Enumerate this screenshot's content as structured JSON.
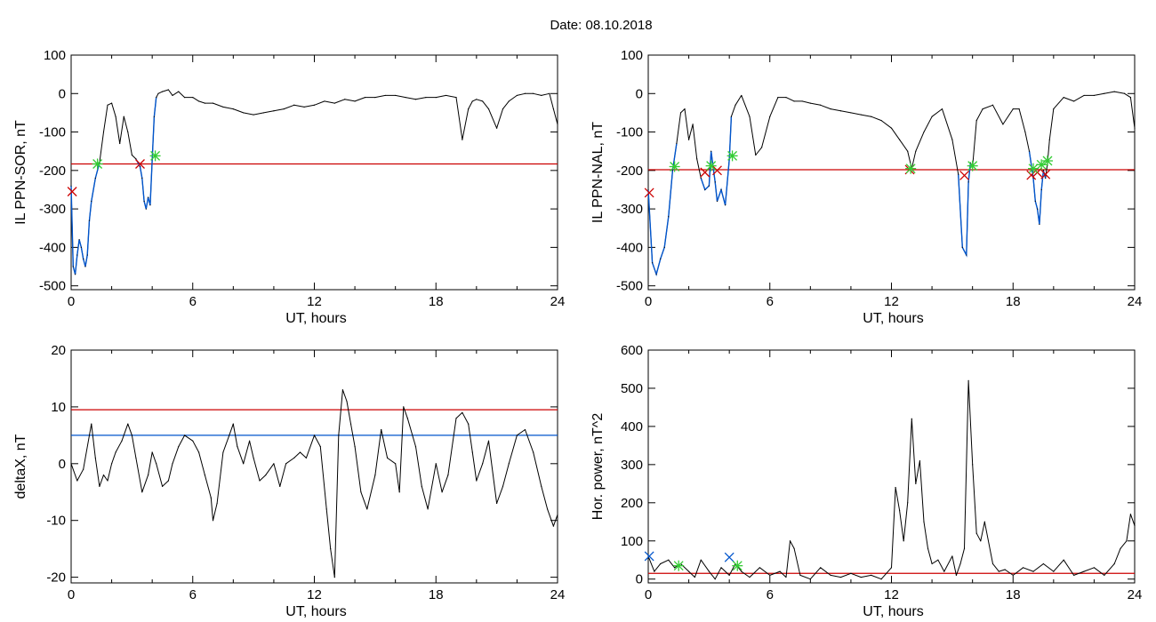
{
  "figure_title": "Date:  08.10.2018",
  "colors": {
    "trace": "#000000",
    "threshold": "#cc0000",
    "highlight": "#0055cc",
    "mark_red": "#cc0000",
    "mark_green": "#33cc33",
    "mark_blue": "#0055cc"
  },
  "chart_data": [
    {
      "type": "line",
      "ylabel": "IL PPN-SOR, nT",
      "xlabel": "UT, hours",
      "xlim": [
        0,
        24
      ],
      "ylim": [
        -510,
        100
      ],
      "xticks": [
        "0",
        "6",
        "12",
        "18",
        "24"
      ],
      "yticks": [
        "100",
        "0",
        "-100",
        "-200",
        "-300",
        "-400",
        "-500"
      ],
      "threshold_red": -183,
      "series": [
        {
          "x": [
            0,
            0.1,
            0.2,
            0.3,
            0.4,
            0.5,
            0.6,
            0.7,
            0.8,
            0.9,
            1.0,
            1.2,
            1.4,
            1.6,
            1.8,
            2.0,
            2.2,
            2.4,
            2.6,
            2.8,
            3.0,
            3.2,
            3.4,
            3.5,
            3.6,
            3.7,
            3.8,
            3.9,
            4.0,
            4.1,
            4.2,
            4.3,
            4.5,
            4.8,
            5.0,
            5.3,
            5.6,
            6.0,
            6.3,
            6.6,
            7.0,
            7.5,
            8.0,
            8.5,
            9.0,
            9.5,
            10.0,
            10.5,
            11.0,
            11.5,
            12.0,
            12.5,
            13.0,
            13.5,
            14.0,
            14.5,
            15.0,
            15.5,
            16.0,
            16.5,
            17.0,
            17.5,
            18.0,
            18.5,
            19.0,
            19.3,
            19.6,
            19.8,
            20.0,
            20.3,
            20.6,
            21.0,
            21.3,
            21.6,
            22.0,
            22.4,
            22.8,
            23.2,
            23.6,
            23.8,
            24.0
          ],
          "y": [
            -240,
            -450,
            -470,
            -420,
            -380,
            -400,
            -430,
            -450,
            -420,
            -330,
            -280,
            -220,
            -180,
            -100,
            -30,
            -25,
            -60,
            -130,
            -60,
            -100,
            -160,
            -170,
            -190,
            -220,
            -280,
            -300,
            -270,
            -290,
            -170,
            -60,
            -10,
            0,
            5,
            10,
            -5,
            5,
            -10,
            -10,
            -20,
            -25,
            -25,
            -35,
            -40,
            -50,
            -55,
            -50,
            -45,
            -40,
            -30,
            -35,
            -30,
            -20,
            -25,
            -15,
            -20,
            -10,
            -10,
            -5,
            -5,
            -10,
            -15,
            -10,
            -10,
            -5,
            -10,
            -120,
            -40,
            -20,
            -15,
            -20,
            -40,
            -90,
            -40,
            -20,
            -5,
            0,
            0,
            -5,
            0,
            -40,
            -80
          ]
        }
      ],
      "highlight_blue": [
        [
          0,
          1.5
        ],
        [
          3.2,
          4.2
        ]
      ],
      "markers": [
        {
          "kind": "x",
          "color": "red",
          "x": 0.05,
          "y": -255
        },
        {
          "kind": "x",
          "color": "red",
          "x": 3.4,
          "y": -183
        },
        {
          "kind": "star",
          "color": "green",
          "x": 1.3,
          "y": -183
        },
        {
          "kind": "star",
          "color": "green",
          "x": 4.15,
          "y": -162
        }
      ]
    },
    {
      "type": "line",
      "ylabel": "IL PPN-NAL, nT",
      "xlabel": "UT, hours",
      "xlim": [
        0,
        24
      ],
      "ylim": [
        -510,
        100
      ],
      "xticks": [
        "0",
        "6",
        "12",
        "18",
        "24"
      ],
      "yticks": [
        "100",
        "0",
        "-100",
        "-200",
        "-300",
        "-400",
        "-500"
      ],
      "threshold_red": -198,
      "series": [
        {
          "x": [
            0,
            0.2,
            0.4,
            0.6,
            0.8,
            1.0,
            1.2,
            1.4,
            1.6,
            1.8,
            2.0,
            2.2,
            2.4,
            2.6,
            2.8,
            3.0,
            3.1,
            3.2,
            3.3,
            3.4,
            3.6,
            3.8,
            4.0,
            4.1,
            4.3,
            4.6,
            5.0,
            5.3,
            5.6,
            6.0,
            6.4,
            6.8,
            7.2,
            7.6,
            8.0,
            8.5,
            9.0,
            9.5,
            10.0,
            10.5,
            11.0,
            11.5,
            12.0,
            12.4,
            12.8,
            13.0,
            13.2,
            13.6,
            14.0,
            14.5,
            15.0,
            15.3,
            15.5,
            15.7,
            15.8,
            15.9,
            16.0,
            16.2,
            16.5,
            17.0,
            17.5,
            18.0,
            18.3,
            18.6,
            18.8,
            19.0,
            19.1,
            19.2,
            19.3,
            19.4,
            19.5,
            19.6,
            19.7,
            19.8,
            20.0,
            20.5,
            21.0,
            21.5,
            22.0,
            22.5,
            23.0,
            23.5,
            23.8,
            24.0
          ],
          "y": [
            -250,
            -440,
            -470,
            -430,
            -400,
            -320,
            -200,
            -130,
            -50,
            -40,
            -120,
            -80,
            -170,
            -220,
            -250,
            -240,
            -150,
            -190,
            -230,
            -280,
            -250,
            -290,
            -170,
            -60,
            -30,
            -5,
            -60,
            -160,
            -140,
            -60,
            -10,
            -10,
            -20,
            -20,
            -25,
            -30,
            -40,
            -45,
            -50,
            -55,
            -60,
            -70,
            -90,
            -120,
            -150,
            -195,
            -150,
            -100,
            -60,
            -40,
            -120,
            -210,
            -400,
            -420,
            -230,
            -180,
            -190,
            -70,
            -40,
            -30,
            -80,
            -40,
            -40,
            -100,
            -150,
            -220,
            -280,
            -300,
            -340,
            -250,
            -200,
            -220,
            -180,
            -120,
            -40,
            -10,
            -20,
            -5,
            -5,
            0,
            5,
            0,
            -10,
            -90
          ]
        }
      ],
      "highlight_blue": [
        [
          0,
          1.4
        ],
        [
          2.6,
          4.1
        ],
        [
          15.3,
          15.9
        ],
        [
          18.8,
          19.6
        ]
      ],
      "markers": [
        {
          "kind": "x",
          "color": "red",
          "x": 0.05,
          "y": -258
        },
        {
          "kind": "x",
          "color": "red",
          "x": 2.8,
          "y": -205
        },
        {
          "kind": "x",
          "color": "red",
          "x": 3.4,
          "y": -200
        },
        {
          "kind": "x",
          "color": "red",
          "x": 12.9,
          "y": -198
        },
        {
          "kind": "x",
          "color": "red",
          "x": 15.6,
          "y": -213
        },
        {
          "kind": "x",
          "color": "red",
          "x": 18.9,
          "y": -212
        },
        {
          "kind": "x",
          "color": "red",
          "x": 19.2,
          "y": -205
        },
        {
          "kind": "x",
          "color": "red",
          "x": 19.6,
          "y": -210
        },
        {
          "kind": "star",
          "color": "green",
          "x": 1.3,
          "y": -190
        },
        {
          "kind": "star",
          "color": "green",
          "x": 3.1,
          "y": -188
        },
        {
          "kind": "star",
          "color": "green",
          "x": 4.15,
          "y": -162
        },
        {
          "kind": "star",
          "color": "green",
          "x": 12.95,
          "y": -195
        },
        {
          "kind": "star",
          "color": "green",
          "x": 16.0,
          "y": -188
        },
        {
          "kind": "star",
          "color": "green",
          "x": 19.0,
          "y": -195
        },
        {
          "kind": "star",
          "color": "green",
          "x": 19.4,
          "y": -185
        },
        {
          "kind": "star",
          "color": "green",
          "x": 19.7,
          "y": -175
        }
      ]
    },
    {
      "type": "line",
      "ylabel": "deltaX, nT",
      "xlabel": "UT, hours",
      "xlim": [
        0,
        24
      ],
      "ylim": [
        -21,
        20
      ],
      "xticks": [
        "0",
        "6",
        "12",
        "18",
        "24"
      ],
      "yticks": [
        "20",
        "10",
        "0",
        "-10",
        "-20"
      ],
      "threshold_red": 9.5,
      "threshold_blue": 5,
      "series": [
        {
          "x": [
            0,
            0.3,
            0.6,
            0.9,
            1.0,
            1.2,
            1.4,
            1.6,
            1.8,
            2.0,
            2.2,
            2.5,
            2.8,
            3.0,
            3.2,
            3.5,
            3.8,
            4.0,
            4.2,
            4.5,
            4.8,
            5.0,
            5.3,
            5.6,
            6.0,
            6.3,
            6.6,
            6.9,
            7.0,
            7.2,
            7.5,
            7.8,
            8.0,
            8.2,
            8.5,
            8.8,
            9.0,
            9.3,
            9.6,
            10.0,
            10.3,
            10.6,
            11.0,
            11.3,
            11.6,
            12.0,
            12.3,
            12.6,
            12.8,
            13.0,
            13.2,
            13.4,
            13.6,
            13.8,
            14.0,
            14.3,
            14.6,
            15.0,
            15.3,
            15.6,
            16.0,
            16.2,
            16.4,
            16.6,
            17.0,
            17.3,
            17.6,
            18.0,
            18.3,
            18.6,
            19.0,
            19.3,
            19.6,
            19.8,
            20.0,
            20.3,
            20.6,
            21.0,
            21.3,
            21.6,
            22.0,
            22.4,
            22.8,
            23.2,
            23.5,
            23.8,
            24.0
          ],
          "y": [
            0,
            -3,
            -1,
            5,
            7,
            1,
            -4,
            -2,
            -3,
            0,
            2,
            4,
            7,
            5,
            1,
            -5,
            -2,
            2,
            0,
            -4,
            -3,
            0,
            3,
            5,
            4,
            2,
            -2,
            -6,
            -10,
            -7,
            2,
            5,
            7,
            3,
            0,
            4,
            1,
            -3,
            -2,
            0,
            -4,
            0,
            1,
            2,
            1,
            5,
            3,
            -8,
            -15,
            -20,
            5,
            13,
            11,
            7,
            3,
            -5,
            -8,
            -2,
            6,
            1,
            0,
            -5,
            10,
            8,
            3,
            -4,
            -8,
            0,
            -5,
            -2,
            8,
            9,
            7,
            2,
            -3,
            0,
            4,
            -7,
            -4,
            0,
            5,
            6,
            2,
            -4,
            -8,
            -11,
            -9
          ]
        }
      ]
    },
    {
      "type": "line",
      "ylabel": "Hor. power, nT^2",
      "xlabel": "UT, hours",
      "xlim": [
        0,
        24
      ],
      "ylim": [
        -10,
        600
      ],
      "xticks": [
        "0",
        "6",
        "12",
        "18",
        "24"
      ],
      "yticks": [
        "600",
        "500",
        "400",
        "300",
        "200",
        "100",
        "0"
      ],
      "threshold_red": 15,
      "series": [
        {
          "x": [
            0,
            0.3,
            0.6,
            1.0,
            1.3,
            1.6,
            2.0,
            2.3,
            2.6,
            3.0,
            3.3,
            3.6,
            4.0,
            4.3,
            4.6,
            5.0,
            5.5,
            6.0,
            6.5,
            6.8,
            7.0,
            7.2,
            7.5,
            8.0,
            8.5,
            9.0,
            9.5,
            10.0,
            10.5,
            11.0,
            11.5,
            12.0,
            12.2,
            12.4,
            12.6,
            12.8,
            13.0,
            13.2,
            13.4,
            13.6,
            13.8,
            14.0,
            14.3,
            14.6,
            15.0,
            15.2,
            15.4,
            15.6,
            15.8,
            16.0,
            16.2,
            16.4,
            16.6,
            17.0,
            17.3,
            17.6,
            18.0,
            18.5,
            19.0,
            19.5,
            20.0,
            20.5,
            21.0,
            21.5,
            22.0,
            22.5,
            23.0,
            23.3,
            23.6,
            23.8,
            24.0
          ],
          "y": [
            60,
            20,
            40,
            50,
            30,
            40,
            20,
            5,
            50,
            20,
            0,
            30,
            10,
            40,
            20,
            5,
            30,
            10,
            20,
            5,
            100,
            80,
            10,
            0,
            30,
            10,
            5,
            15,
            5,
            10,
            0,
            30,
            240,
            180,
            100,
            200,
            420,
            250,
            310,
            150,
            80,
            40,
            50,
            20,
            60,
            10,
            40,
            80,
            520,
            300,
            120,
            100,
            150,
            40,
            20,
            25,
            10,
            30,
            20,
            40,
            20,
            50,
            10,
            20,
            30,
            10,
            40,
            80,
            100,
            170,
            140
          ]
        }
      ],
      "markers": [
        {
          "kind": "x",
          "color": "blue",
          "x": 0.05,
          "y": 60
        },
        {
          "kind": "star",
          "color": "green",
          "x": 1.5,
          "y": 35
        },
        {
          "kind": "x",
          "color": "blue",
          "x": 4.0,
          "y": 57
        },
        {
          "kind": "star",
          "color": "green",
          "x": 4.4,
          "y": 35
        }
      ]
    }
  ]
}
